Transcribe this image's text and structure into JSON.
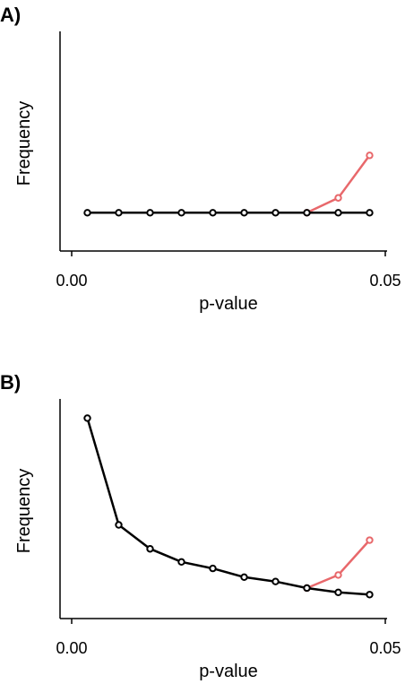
{
  "colors": {
    "series_main": "#000000",
    "series_highlight": "#e8686b",
    "axis": "#000000",
    "background": "#ffffff"
  },
  "chart_data": [
    {
      "type": "line",
      "panel_label": "A)",
      "xlabel": "p-value",
      "ylabel": "Frequency",
      "xlim": [
        0.0,
        0.05
      ],
      "ylim": [
        0.0,
        1.0
      ],
      "y_ticks_shown": false,
      "xticks": [
        {
          "value": 0.0,
          "label": "0.00"
        },
        {
          "value": 0.05,
          "label": "0.05"
        }
      ],
      "grid": false,
      "series": [
        {
          "role": "highlight",
          "x": [
            0.0375,
            0.0425,
            0.0475
          ],
          "y": [
            0.18,
            0.25,
            0.45
          ]
        },
        {
          "role": "main",
          "x": [
            0.0025,
            0.0075,
            0.0125,
            0.0175,
            0.0225,
            0.0275,
            0.0325,
            0.0375,
            0.0425,
            0.0475
          ],
          "y": [
            0.18,
            0.18,
            0.18,
            0.18,
            0.18,
            0.18,
            0.18,
            0.18,
            0.18,
            0.18
          ]
        }
      ]
    },
    {
      "type": "line",
      "panel_label": "B)",
      "xlabel": "p-value",
      "ylabel": "Frequency",
      "xlim": [
        0.0,
        0.05
      ],
      "ylim": [
        0.0,
        1.0
      ],
      "y_ticks_shown": false,
      "xticks": [
        {
          "value": 0.0,
          "label": "0.00"
        },
        {
          "value": 0.05,
          "label": "0.05"
        }
      ],
      "grid": false,
      "series": [
        {
          "role": "highlight",
          "x": [
            0.0375,
            0.0425,
            0.0475
          ],
          "y": [
            0.14,
            0.2,
            0.36
          ]
        },
        {
          "role": "main",
          "x": [
            0.0025,
            0.0075,
            0.0125,
            0.0175,
            0.0225,
            0.0275,
            0.0325,
            0.0375,
            0.0425,
            0.0475
          ],
          "y": [
            0.92,
            0.43,
            0.32,
            0.26,
            0.23,
            0.19,
            0.17,
            0.14,
            0.12,
            0.11
          ]
        }
      ]
    }
  ]
}
